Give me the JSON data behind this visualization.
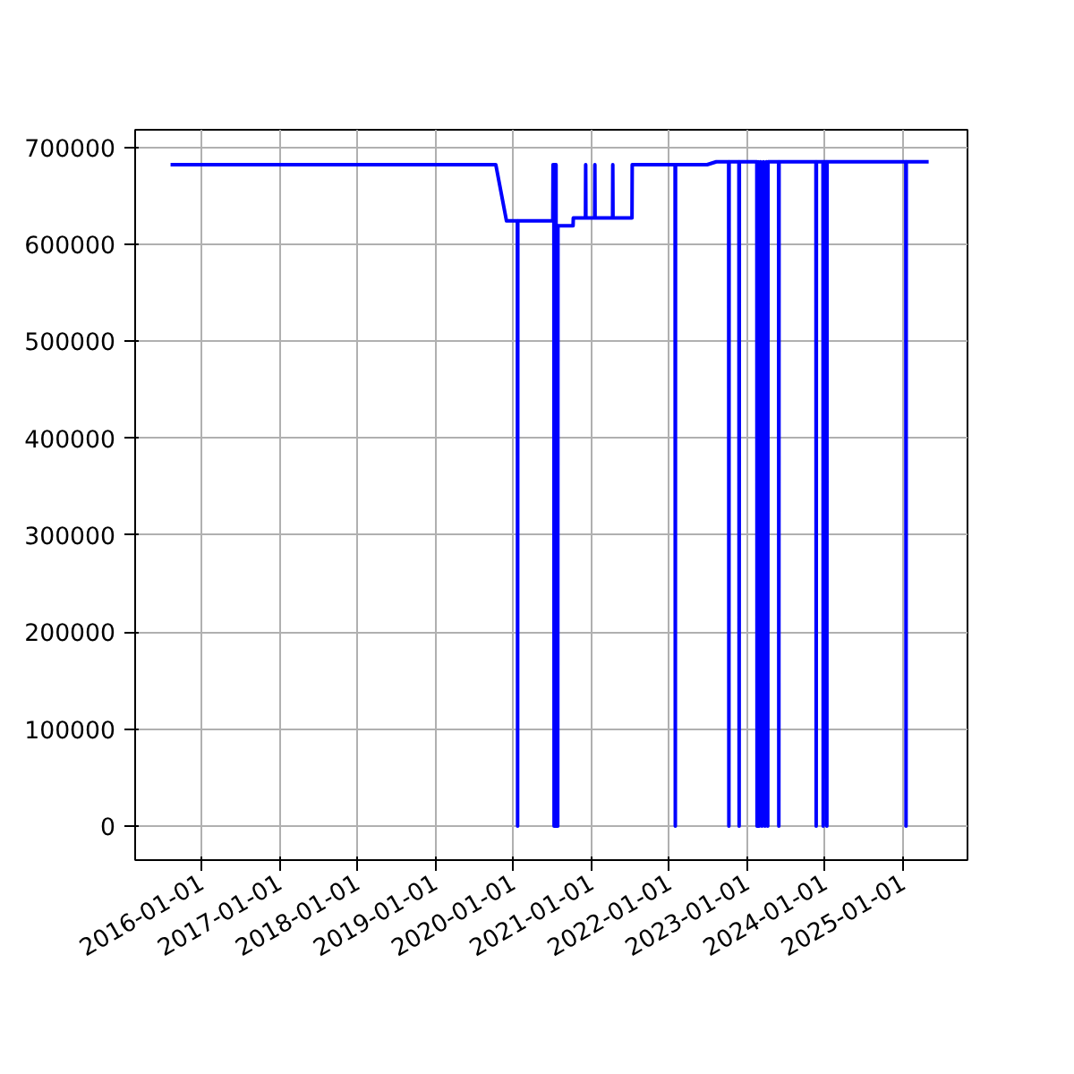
{
  "chart_data": {
    "type": "line",
    "x": [
      "2015-08-10",
      "2019-10-12",
      "2019-12-01",
      "2020-01-21",
      "2020-01-22",
      "2020-01-23",
      "2020-07-05",
      "2020-07-06",
      "2020-07-10",
      "2020-07-11",
      "2020-07-15",
      "2020-07-16",
      "2020-07-20",
      "2020-07-21",
      "2020-07-28",
      "2020-07-29",
      "2020-10-08",
      "2020-10-09",
      "2020-12-05",
      "2020-12-06",
      "2020-12-07",
      "2021-01-17",
      "2021-01-18",
      "2021-01-19",
      "2021-04-11",
      "2021-04-12",
      "2021-04-13",
      "2021-07-11",
      "2021-07-12",
      "2022-01-29",
      "2022-01-30",
      "2022-01-31",
      "2022-06-28",
      "2022-08-10",
      "2022-10-07",
      "2022-10-08",
      "2022-10-09",
      "2022-11-24",
      "2022-11-25",
      "2022-11-26",
      "2023-02-16",
      "2023-02-17",
      "2023-02-22",
      "2023-02-27",
      "2023-03-05",
      "2023-03-12",
      "2023-03-19",
      "2023-03-26",
      "2023-04-02",
      "2023-04-08",
      "2023-04-09",
      "2023-05-29",
      "2023-05-30",
      "2023-05-31",
      "2023-11-20",
      "2023-11-21",
      "2023-11-22",
      "2023-12-23",
      "2023-12-24",
      "2023-12-25",
      "2024-01-09",
      "2024-01-10",
      "2024-01-11",
      "2025-01-14",
      "2025-01-15",
      "2025-01-16",
      "2025-05-01"
    ],
    "series": [
      {
        "color": "#0000ff",
        "values": [
          682000,
          682000,
          624000,
          624000,
          0,
          624000,
          624000,
          682000,
          682000,
          0,
          682000,
          0,
          682000,
          0,
          0,
          619000,
          619000,
          627000,
          627000,
          682000,
          627000,
          627000,
          682000,
          627000,
          627000,
          682000,
          627000,
          627000,
          682000,
          682000,
          0,
          682000,
          682000,
          685000,
          685000,
          0,
          685000,
          685000,
          0,
          685000,
          685000,
          0,
          685000,
          0,
          685000,
          0,
          685000,
          0,
          685000,
          0,
          685000,
          685000,
          0,
          685000,
          685000,
          0,
          685000,
          685000,
          0,
          685000,
          685000,
          0,
          685000,
          685000,
          0,
          685000,
          685000
        ]
      }
    ],
    "xlim": [
      "2015-02-25",
      "2025-10-30"
    ],
    "ylim": [
      -35000,
      718000
    ],
    "xticks": [
      {
        "value": "2016-01-01",
        "label": "2016-01-01"
      },
      {
        "value": "2017-01-01",
        "label": "2017-01-01"
      },
      {
        "value": "2018-01-01",
        "label": "2018-01-01"
      },
      {
        "value": "2019-01-01",
        "label": "2019-01-01"
      },
      {
        "value": "2020-01-01",
        "label": "2020-01-01"
      },
      {
        "value": "2021-01-01",
        "label": "2021-01-01"
      },
      {
        "value": "2022-01-01",
        "label": "2022-01-01"
      },
      {
        "value": "2023-01-01",
        "label": "2023-01-01"
      },
      {
        "value": "2024-01-01",
        "label": "2024-01-01"
      },
      {
        "value": "2025-01-01",
        "label": "2025-01-01"
      }
    ],
    "yticks": [
      0,
      100000,
      200000,
      300000,
      400000,
      500000,
      600000,
      700000
    ],
    "grid": true
  }
}
